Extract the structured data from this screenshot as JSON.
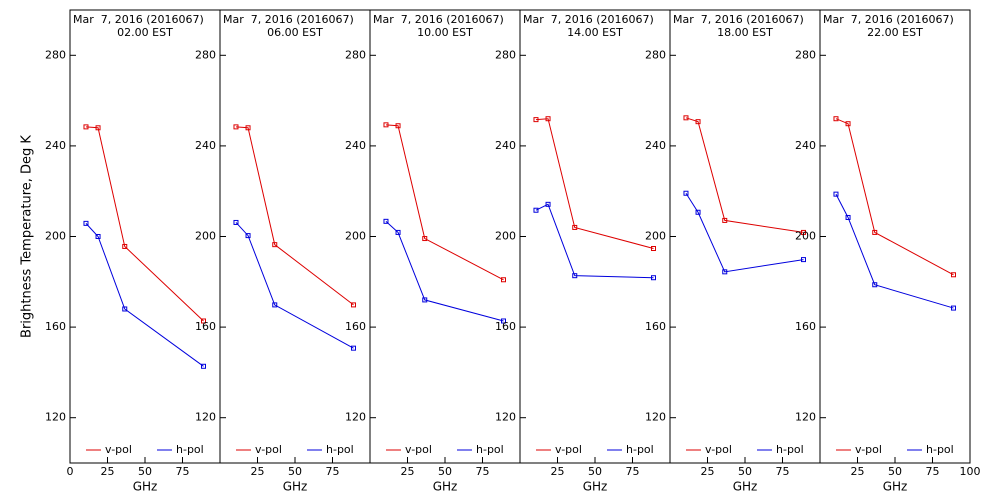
{
  "chart_data": [
    {
      "type": "line",
      "title": "Mar  7, 2016 (2016067)",
      "subtitle": "02.00 EST",
      "ylabel": "Brightness Temperature, Deg K",
      "xlabel": "GHz",
      "x": [
        10.65,
        18.7,
        36.5,
        89.0
      ],
      "xlim": [
        0,
        100
      ],
      "xticks": [
        0,
        25,
        50,
        75
      ],
      "ylim": [
        100,
        300
      ],
      "yticks": [
        120,
        160,
        200,
        240,
        280
      ],
      "series": [
        {
          "name": "v-pol",
          "color": "#dd0000",
          "values": [
            248.4,
            248.0,
            195.6,
            162.7
          ]
        },
        {
          "name": "h-pol",
          "color": "#0000dd",
          "values": [
            205.8,
            200.0,
            168.0,
            142.7
          ]
        }
      ]
    },
    {
      "type": "line",
      "title": "Mar  7, 2016 (2016067)",
      "subtitle": "06.00 EST",
      "xlabel": "GHz",
      "x": [
        10.65,
        18.7,
        36.5,
        89.0
      ],
      "xlim": [
        0,
        100
      ],
      "xticks": [
        25,
        50,
        75
      ],
      "ylim": [
        100,
        300
      ],
      "yticks": [
        120,
        160,
        200,
        240,
        280
      ],
      "series": [
        {
          "name": "v-pol",
          "color": "#dd0000",
          "values": [
            248.4,
            248.0,
            196.4,
            169.8
          ]
        },
        {
          "name": "h-pol",
          "color": "#0000dd",
          "values": [
            206.2,
            200.4,
            169.8,
            150.7
          ]
        }
      ]
    },
    {
      "type": "line",
      "title": "Mar  7, 2016 (2016067)",
      "subtitle": "10.00 EST",
      "xlabel": "GHz",
      "x": [
        10.65,
        18.7,
        36.5,
        89.0
      ],
      "xlim": [
        0,
        100
      ],
      "xticks": [
        25,
        50,
        75
      ],
      "ylim": [
        100,
        300
      ],
      "yticks": [
        120,
        160,
        200,
        240,
        280
      ],
      "series": [
        {
          "name": "v-pol",
          "color": "#dd0000",
          "values": [
            249.3,
            248.9,
            199.1,
            180.9
          ]
        },
        {
          "name": "h-pol",
          "color": "#0000dd",
          "values": [
            206.7,
            201.8,
            172.0,
            162.7
          ]
        }
      ]
    },
    {
      "type": "line",
      "title": "Mar  7, 2016 (2016067)",
      "subtitle": "14.00 EST",
      "xlabel": "GHz",
      "x": [
        10.65,
        18.7,
        36.5,
        89.0
      ],
      "xlim": [
        0,
        100
      ],
      "xticks": [
        25,
        50,
        75
      ],
      "ylim": [
        100,
        300
      ],
      "yticks": [
        120,
        160,
        200,
        240,
        280
      ],
      "series": [
        {
          "name": "v-pol",
          "color": "#dd0000",
          "values": [
            251.6,
            252.0,
            204.0,
            194.7
          ]
        },
        {
          "name": "h-pol",
          "color": "#0000dd",
          "values": [
            211.6,
            214.2,
            182.7,
            181.8
          ]
        }
      ]
    },
    {
      "type": "line",
      "title": "Mar  7, 2016 (2016067)",
      "subtitle": "18.00 EST",
      "xlabel": "GHz",
      "x": [
        10.65,
        18.7,
        36.5,
        89.0
      ],
      "xlim": [
        0,
        100
      ],
      "xticks": [
        25,
        50,
        75
      ],
      "ylim": [
        100,
        300
      ],
      "yticks": [
        120,
        160,
        200,
        240,
        280
      ],
      "series": [
        {
          "name": "v-pol",
          "color": "#dd0000",
          "values": [
            252.4,
            250.7,
            207.1,
            201.8
          ]
        },
        {
          "name": "h-pol",
          "color": "#0000dd",
          "values": [
            219.1,
            210.7,
            184.4,
            189.8
          ]
        }
      ]
    },
    {
      "type": "line",
      "title": "Mar  7, 2016 (2016067)",
      "subtitle": "22.00 EST",
      "xlabel": "GHz",
      "x": [
        10.65,
        18.7,
        36.5,
        89.0
      ],
      "xlim": [
        0,
        100
      ],
      "xticks": [
        25,
        50,
        75,
        100
      ],
      "ylim": [
        100,
        300
      ],
      "yticks": [
        120,
        160,
        200,
        240,
        280
      ],
      "series": [
        {
          "name": "v-pol",
          "color": "#dd0000",
          "values": [
            252.0,
            249.8,
            201.8,
            183.1
          ]
        },
        {
          "name": "h-pol",
          "color": "#0000dd",
          "values": [
            218.7,
            208.4,
            178.7,
            168.4
          ]
        }
      ]
    }
  ]
}
